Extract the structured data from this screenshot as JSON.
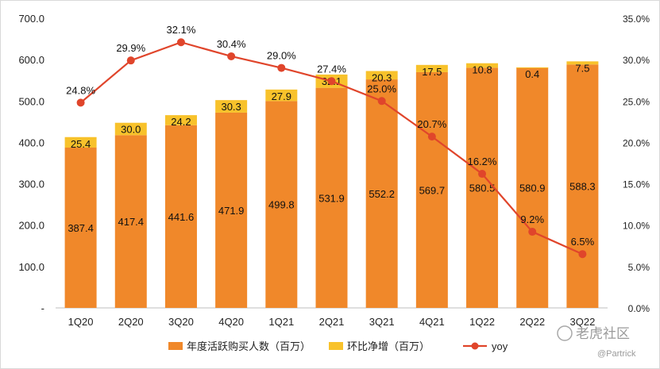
{
  "chart_data": {
    "type": "bar",
    "stacked": true,
    "categories": [
      "1Q20",
      "2Q20",
      "3Q20",
      "4Q20",
      "1Q21",
      "2Q21",
      "3Q21",
      "4Q21",
      "1Q22",
      "2Q22",
      "3Q22"
    ],
    "series": [
      {
        "name": "年度活跃购买人数（百万）",
        "type": "bar",
        "color": "#f0882a",
        "values": [
          387.4,
          417.4,
          441.6,
          471.9,
          499.8,
          531.9,
          552.2,
          569.7,
          580.5,
          580.9,
          588.3
        ],
        "labels": [
          "387.4",
          "417.4",
          "441.6",
          "471.9",
          "499.8",
          "531.9",
          "552.2",
          "569.7",
          "580.5",
          "580.9",
          "588.3"
        ]
      },
      {
        "name": "环比净增（百万）",
        "type": "bar",
        "color": "#f8c22b",
        "values": [
          25.4,
          30.0,
          24.2,
          30.3,
          27.9,
          32.1,
          20.3,
          17.5,
          10.8,
          0.4,
          7.5
        ],
        "labels": [
          "25.4",
          "30.0",
          "24.2",
          "30.3",
          "27.9",
          "32.1",
          "20.3",
          "17.5",
          "10.8",
          "0.4",
          "7.5"
        ]
      },
      {
        "name": "yoy",
        "type": "line",
        "axis": "right",
        "color": "#e0452b",
        "values": [
          24.8,
          29.9,
          32.1,
          30.4,
          29.0,
          27.4,
          25.0,
          20.7,
          16.2,
          9.2,
          6.5
        ],
        "labels": [
          "24.8%",
          "29.9%",
          "32.1%",
          "30.4%",
          "29.0%",
          "27.4%",
          "25.0%",
          "20.7%",
          "16.2%",
          "9.2%",
          "6.5%"
        ]
      }
    ],
    "ylim": [
      0,
      700
    ],
    "y_ticks": [
      "-",
      "100.0",
      "200.0",
      "300.0",
      "400.0",
      "500.0",
      "600.0",
      "700.0"
    ],
    "y2lim": [
      0,
      35
    ],
    "y2_ticks": [
      "0.0%",
      "5.0%",
      "10.0%",
      "15.0%",
      "20.0%",
      "25.0%",
      "30.0%",
      "35.0%"
    ],
    "legend_position": "bottom-center",
    "grid": false
  },
  "watermark": {
    "brand": "老虎社区",
    "user": "@Partrick"
  }
}
